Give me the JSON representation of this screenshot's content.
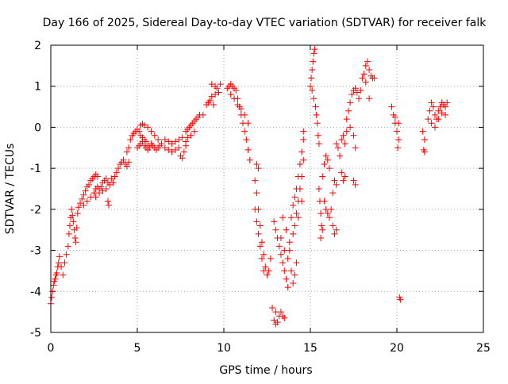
{
  "chart_data": {
    "type": "scatter",
    "title": "Day 166 of 2025, Sidereal Day-to-day VTEC variation (SDTVAR) for receiver falk",
    "xlabel": "GPS time / hours",
    "ylabel": "SDTVAR / TECUs",
    "xlim": [
      0,
      25
    ],
    "ylim": [
      -5,
      2
    ],
    "xticks": [
      "0",
      "5",
      "10",
      "15",
      "20",
      "25"
    ],
    "yticks": [
      "-5",
      "-4",
      "-3",
      "-2",
      "-1",
      "0",
      "1",
      "2"
    ],
    "grid": true,
    "marker": "+",
    "color": "#ff0000",
    "points": [
      [
        0.0,
        -4.3
      ],
      [
        0.05,
        -4.15
      ],
      [
        0.1,
        -4.0
      ],
      [
        0.15,
        -3.85
      ],
      [
        0.2,
        -3.75
      ],
      [
        0.25,
        -3.7
      ],
      [
        0.3,
        -3.6
      ],
      [
        0.35,
        -3.55
      ],
      [
        0.4,
        -3.4
      ],
      [
        0.45,
        -3.3
      ],
      [
        0.5,
        -3.15
      ],
      [
        0.6,
        -3.4
      ],
      [
        0.7,
        -3.6
      ],
      [
        0.8,
        -3.3
      ],
      [
        0.9,
        -3.1
      ],
      [
        1.0,
        -2.9
      ],
      [
        1.05,
        -2.6
      ],
      [
        1.1,
        -2.4
      ],
      [
        1.15,
        -2.2
      ],
      [
        1.2,
        -2.0
      ],
      [
        1.25,
        -2.15
      ],
      [
        1.3,
        -2.3
      ],
      [
        1.35,
        -2.5
      ],
      [
        1.4,
        -2.7
      ],
      [
        1.45,
        -2.8
      ],
      [
        1.5,
        -2.45
      ],
      [
        1.55,
        -2.1
      ],
      [
        1.6,
        -1.95
      ],
      [
        1.7,
        -1.85
      ],
      [
        1.8,
        -1.75
      ],
      [
        1.9,
        -1.65
      ],
      [
        2.0,
        -1.55
      ],
      [
        2.1,
        -1.45
      ],
      [
        2.2,
        -1.4
      ],
      [
        2.3,
        -1.3
      ],
      [
        2.4,
        -1.25
      ],
      [
        2.5,
        -1.2
      ],
      [
        2.6,
        -1.15
      ],
      [
        2.7,
        -1.2
      ],
      [
        1.9,
        -1.9
      ],
      [
        2.1,
        -1.8
      ],
      [
        2.3,
        -1.7
      ],
      [
        2.5,
        -1.6
      ],
      [
        2.6,
        -1.5
      ],
      [
        2.7,
        -1.45
      ],
      [
        2.8,
        -1.5
      ],
      [
        2.9,
        -1.45
      ],
      [
        3.0,
        -1.35
      ],
      [
        3.1,
        -1.3
      ],
      [
        3.2,
        -1.25
      ],
      [
        3.3,
        -1.35
      ],
      [
        2.6,
        -1.7
      ],
      [
        2.8,
        -1.6
      ],
      [
        3.0,
        -1.55
      ],
      [
        3.2,
        -1.5
      ],
      [
        3.4,
        -1.4
      ],
      [
        3.5,
        -1.25
      ],
      [
        3.6,
        -1.35
      ],
      [
        3.7,
        -1.2
      ],
      [
        3.8,
        -1.1
      ],
      [
        3.9,
        -1.0
      ],
      [
        4.0,
        -0.9
      ],
      [
        4.1,
        -0.85
      ],
      [
        4.2,
        -0.8
      ],
      [
        4.3,
        -0.9
      ],
      [
        4.4,
        -0.95
      ],
      [
        4.5,
        -0.85
      ],
      [
        3.3,
        -1.8
      ],
      [
        3.35,
        -1.9
      ],
      [
        4.4,
        -0.6
      ],
      [
        4.5,
        -0.5
      ],
      [
        4.6,
        -0.3
      ],
      [
        4.7,
        -0.2
      ],
      [
        4.8,
        -0.15
      ],
      [
        4.9,
        -0.1
      ],
      [
        5.0,
        -0.05
      ],
      [
        5.1,
        -0.1
      ],
      [
        5.2,
        -0.2
      ],
      [
        5.3,
        -0.25
      ],
      [
        5.4,
        -0.3
      ],
      [
        5.5,
        -0.35
      ],
      [
        5.6,
        -0.45
      ],
      [
        5.0,
        -0.5
      ],
      [
        5.1,
        -0.45
      ],
      [
        5.2,
        -0.4
      ],
      [
        5.3,
        -0.35
      ],
      [
        5.4,
        -0.45
      ],
      [
        5.5,
        -0.5
      ],
      [
        5.6,
        -0.55
      ],
      [
        5.7,
        -0.5
      ],
      [
        5.8,
        -0.4
      ],
      [
        5.9,
        -0.45
      ],
      [
        6.0,
        -0.5
      ],
      [
        6.1,
        -0.55
      ],
      [
        6.2,
        -0.5
      ],
      [
        6.3,
        -0.45
      ],
      [
        5.2,
        0.05
      ],
      [
        5.3,
        0.08
      ],
      [
        5.4,
        0.05
      ],
      [
        5.6,
        0.0
      ],
      [
        5.8,
        -0.1
      ],
      [
        6.0,
        -0.2
      ],
      [
        6.2,
        -0.3
      ],
      [
        6.4,
        -0.4
      ],
      [
        6.6,
        -0.5
      ],
      [
        6.8,
        -0.55
      ],
      [
        7.0,
        -0.6
      ],
      [
        7.2,
        -0.55
      ],
      [
        7.4,
        -0.5
      ],
      [
        6.6,
        -0.3
      ],
      [
        6.8,
        -0.35
      ],
      [
        7.0,
        -0.4
      ],
      [
        7.2,
        -0.35
      ],
      [
        7.4,
        -0.3
      ],
      [
        7.6,
        -0.25
      ],
      [
        7.8,
        -0.35
      ],
      [
        7.5,
        -0.7
      ],
      [
        7.6,
        -0.75
      ],
      [
        7.7,
        -0.6
      ],
      [
        7.8,
        -0.45
      ],
      [
        7.8,
        -0.1
      ],
      [
        7.9,
        -0.05
      ],
      [
        8.0,
        0.0
      ],
      [
        8.1,
        0.05
      ],
      [
        8.2,
        0.1
      ],
      [
        8.3,
        0.15
      ],
      [
        8.4,
        0.2
      ],
      [
        8.5,
        0.25
      ],
      [
        8.6,
        0.3
      ],
      [
        7.9,
        -0.25
      ],
      [
        8.1,
        -0.2
      ],
      [
        8.3,
        -0.1
      ],
      [
        8.8,
        0.3
      ],
      [
        9.0,
        0.55
      ],
      [
        9.1,
        0.6
      ],
      [
        9.2,
        0.65
      ],
      [
        9.3,
        0.75
      ],
      [
        9.4,
        0.55
      ],
      [
        9.5,
        0.8
      ],
      [
        9.6,
        0.95
      ],
      [
        9.7,
        0.85
      ],
      [
        9.5,
        1.0
      ],
      [
        9.8,
        1.05
      ],
      [
        9.3,
        1.05
      ],
      [
        10.2,
        0.95
      ],
      [
        10.3,
        1.0
      ],
      [
        10.4,
        1.05
      ],
      [
        10.5,
        1.0
      ],
      [
        10.6,
        0.95
      ],
      [
        10.7,
        0.9
      ],
      [
        10.8,
        0.7
      ],
      [
        10.9,
        0.5
      ],
      [
        11.0,
        0.3
      ],
      [
        11.1,
        0.1
      ],
      [
        11.2,
        -0.1
      ],
      [
        11.3,
        -0.3
      ],
      [
        11.4,
        -0.55
      ],
      [
        11.5,
        -0.8
      ],
      [
        10.4,
        0.8
      ],
      [
        10.6,
        0.7
      ],
      [
        10.8,
        0.55
      ],
      [
        11.0,
        0.45
      ],
      [
        11.2,
        0.3
      ],
      [
        11.4,
        0.1
      ],
      [
        11.8,
        -1.3
      ],
      [
        11.9,
        -1.6
      ],
      [
        12.0,
        -2.0
      ],
      [
        12.1,
        -2.4
      ],
      [
        12.2,
        -2.8
      ],
      [
        12.3,
        -3.1
      ],
      [
        12.4,
        -3.4
      ],
      [
        12.5,
        -3.6
      ],
      [
        12.6,
        -3.5
      ],
      [
        12.7,
        -3.2
      ],
      [
        11.8,
        -2.0
      ],
      [
        11.9,
        -2.3
      ],
      [
        12.0,
        -2.6
      ],
      [
        12.1,
        -2.9
      ],
      [
        12.2,
        -3.2
      ],
      [
        12.3,
        -3.5
      ],
      [
        11.9,
        -0.9
      ],
      [
        12.0,
        -1.0
      ],
      [
        12.8,
        -4.4
      ],
      [
        12.9,
        -4.7
      ],
      [
        13.0,
        -4.8
      ],
      [
        13.1,
        -4.75
      ],
      [
        13.2,
        -4.6
      ],
      [
        13.3,
        -4.5
      ],
      [
        13.4,
        -4.6
      ],
      [
        13.5,
        -4.65
      ],
      [
        13.0,
        -4.5
      ],
      [
        12.9,
        -2.3
      ],
      [
        13.0,
        -2.5
      ],
      [
        13.1,
        -2.7
      ],
      [
        13.2,
        -2.9
      ],
      [
        13.3,
        -3.1
      ],
      [
        13.4,
        -3.3
      ],
      [
        13.5,
        -3.5
      ],
      [
        13.6,
        -3.7
      ],
      [
        13.7,
        -3.9
      ],
      [
        13.4,
        -2.2
      ],
      [
        13.6,
        -2.5
      ],
      [
        13.8,
        -2.8
      ],
      [
        13.3,
        -2.7
      ],
      [
        13.5,
        -3.0
      ],
      [
        13.7,
        -3.2
      ],
      [
        13.8,
        -3.0
      ],
      [
        13.9,
        -3.5
      ],
      [
        14.0,
        -3.8
      ],
      [
        14.1,
        -3.6
      ],
      [
        14.2,
        -3.3
      ],
      [
        13.9,
        -2.2
      ],
      [
        14.0,
        -1.9
      ],
      [
        14.1,
        -1.7
      ],
      [
        14.2,
        -1.5
      ],
      [
        14.3,
        -1.2
      ],
      [
        14.4,
        -0.9
      ],
      [
        14.5,
        -0.6
      ],
      [
        14.6,
        -0.3
      ],
      [
        14.6,
        -0.1
      ],
      [
        14.0,
        -2.6
      ],
      [
        14.1,
        -2.4
      ],
      [
        14.2,
        -2.1
      ],
      [
        14.3,
        -1.8
      ],
      [
        14.4,
        -1.5
      ],
      [
        14.5,
        -1.2
      ],
      [
        14.6,
        -0.8
      ],
      [
        14.3,
        -2.2
      ],
      [
        14.5,
        -1.8
      ],
      [
        15.0,
        1.0
      ],
      [
        15.05,
        1.2
      ],
      [
        15.1,
        1.4
      ],
      [
        15.15,
        1.6
      ],
      [
        15.2,
        1.8
      ],
      [
        15.25,
        1.9
      ],
      [
        15.1,
        0.9
      ],
      [
        15.2,
        0.7
      ],
      [
        15.3,
        0.5
      ],
      [
        15.35,
        0.3
      ],
      [
        15.4,
        0.1
      ],
      [
        15.45,
        -0.2
      ],
      [
        15.5,
        -0.4
      ],
      [
        15.5,
        -1.5
      ],
      [
        15.55,
        -1.8
      ],
      [
        15.6,
        -2.1
      ],
      [
        15.65,
        -2.4
      ],
      [
        15.7,
        -2.5
      ],
      [
        15.6,
        -2.7
      ],
      [
        15.7,
        -1.2
      ],
      [
        15.8,
        -0.9
      ],
      [
        15.9,
        -0.7
      ],
      [
        16.0,
        -0.8
      ],
      [
        16.1,
        -1.0
      ],
      [
        15.8,
        -1.8
      ],
      [
        15.9,
        -2.0
      ],
      [
        16.0,
        -2.1
      ],
      [
        16.1,
        -2.2
      ],
      [
        16.2,
        -2.0
      ],
      [
        16.3,
        -1.6
      ],
      [
        16.4,
        -1.3
      ],
      [
        16.3,
        -2.4
      ],
      [
        16.4,
        -2.6
      ],
      [
        16.5,
        -2.5
      ],
      [
        16.5,
        -1.4
      ],
      [
        16.5,
        -0.4
      ],
      [
        16.6,
        -0.5
      ],
      [
        16.7,
        -0.7
      ],
      [
        16.8,
        -0.3
      ],
      [
        16.9,
        -0.2
      ],
      [
        16.8,
        -1.1
      ],
      [
        16.9,
        -1.3
      ],
      [
        17.0,
        -1.2
      ],
      [
        17.0,
        -0.4
      ],
      [
        17.1,
        -0.1
      ],
      [
        17.1,
        0.2
      ],
      [
        17.2,
        0.4
      ],
      [
        17.3,
        0.6
      ],
      [
        17.4,
        0.8
      ],
      [
        17.5,
        0.9
      ],
      [
        17.6,
        0.95
      ],
      [
        17.7,
        0.85
      ],
      [
        17.8,
        0.7
      ],
      [
        17.9,
        0.9
      ],
      [
        17.3,
        0.0
      ],
      [
        17.5,
        -0.2
      ],
      [
        17.6,
        -0.5
      ],
      [
        17.5,
        -1.3
      ],
      [
        17.6,
        -1.4
      ],
      [
        18.0,
        1.2
      ],
      [
        18.1,
        1.3
      ],
      [
        18.2,
        1.5
      ],
      [
        18.3,
        1.6
      ],
      [
        18.4,
        1.4
      ],
      [
        18.5,
        1.25
      ],
      [
        18.6,
        1.2
      ],
      [
        18.7,
        1.2
      ],
      [
        18.4,
        0.7
      ],
      [
        18.2,
        1.1
      ],
      [
        19.7,
        0.5
      ],
      [
        19.8,
        0.3
      ],
      [
        19.9,
        0.1
      ],
      [
        20.0,
        -0.1
      ],
      [
        20.1,
        -0.3
      ],
      [
        20.05,
        -0.5
      ],
      [
        19.9,
        0.25
      ],
      [
        20.1,
        0.1
      ],
      [
        20.2,
        -4.2
      ],
      [
        20.15,
        -4.15
      ],
      [
        21.5,
        -0.1
      ],
      [
        21.6,
        -0.3
      ],
      [
        21.55,
        -0.55
      ],
      [
        21.6,
        -0.6
      ],
      [
        21.8,
        0.2
      ],
      [
        21.9,
        0.4
      ],
      [
        22.0,
        0.6
      ],
      [
        22.1,
        0.5
      ],
      [
        22.2,
        0.3
      ],
      [
        22.3,
        0.2
      ],
      [
        22.4,
        0.4
      ],
      [
        22.5,
        0.5
      ],
      [
        22.6,
        0.6
      ],
      [
        22.7,
        0.55
      ],
      [
        22.8,
        0.5
      ],
      [
        22.9,
        0.6
      ],
      [
        22.0,
        0.1
      ],
      [
        22.2,
        0.0
      ],
      [
        22.4,
        0.2
      ],
      [
        22.6,
        0.35
      ],
      [
        22.8,
        0.3
      ]
    ]
  }
}
